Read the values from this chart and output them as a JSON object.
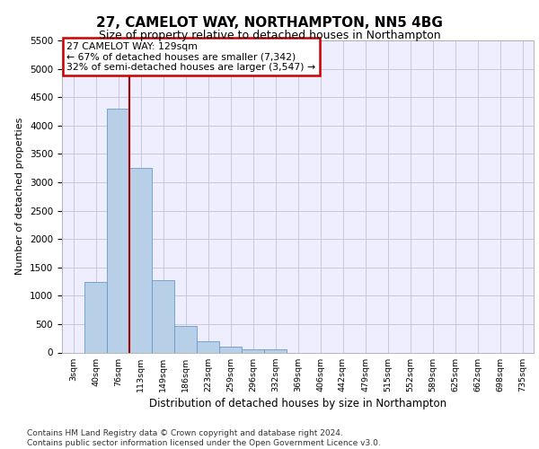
{
  "title_line1": "27, CAMELOT WAY, NORTHAMPTON, NN5 4BG",
  "title_line2": "Size of property relative to detached houses in Northampton",
  "xlabel": "Distribution of detached houses by size in Northampton",
  "ylabel": "Number of detached properties",
  "footnote": "Contains HM Land Registry data © Crown copyright and database right 2024.\nContains public sector information licensed under the Open Government Licence v3.0.",
  "bar_labels": [
    "3sqm",
    "40sqm",
    "76sqm",
    "113sqm",
    "149sqm",
    "186sqm",
    "223sqm",
    "259sqm",
    "296sqm",
    "332sqm",
    "369sqm",
    "406sqm",
    "442sqm",
    "479sqm",
    "515sqm",
    "552sqm",
    "589sqm",
    "625sqm",
    "662sqm",
    "698sqm",
    "735sqm"
  ],
  "bar_values": [
    0,
    1250,
    4300,
    3250,
    1280,
    470,
    200,
    100,
    60,
    50,
    0,
    0,
    0,
    0,
    0,
    0,
    0,
    0,
    0,
    0,
    0
  ],
  "bar_color": "#b8cfe8",
  "bar_edge_color": "#6699cc",
  "vline_x": 2.5,
  "vline_color": "#aa0000",
  "annotation_text": "27 CAMELOT WAY: 129sqm\n← 67% of detached houses are smaller (7,342)\n32% of semi-detached houses are larger (3,547) →",
  "annotation_box_color": "white",
  "annotation_edge_color": "#cc0000",
  "ylim": [
    0,
    5500
  ],
  "yticks": [
    0,
    500,
    1000,
    1500,
    2000,
    2500,
    3000,
    3500,
    4000,
    4500,
    5000,
    5500
  ],
  "grid_color": "#c8c8dc",
  "bg_color": "#eeeeff",
  "title1_fontsize": 11,
  "title2_fontsize": 9,
  "footnote_fontsize": 6.5
}
